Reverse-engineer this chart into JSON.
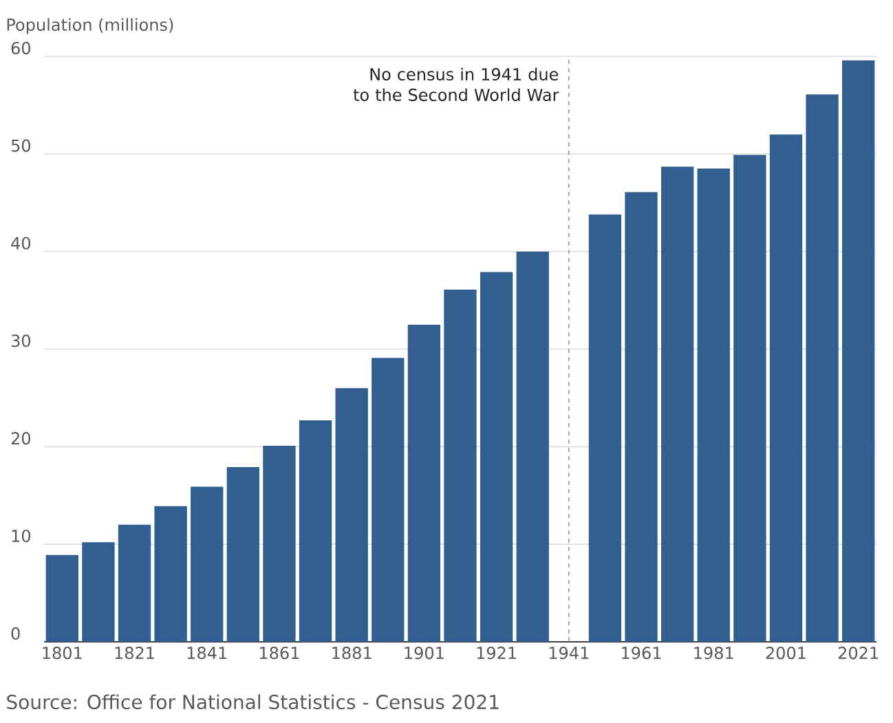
{
  "chart_data": {
    "type": "bar",
    "ylabel": "Population (millions)",
    "x": [
      1801,
      1811,
      1821,
      1831,
      1841,
      1851,
      1861,
      1871,
      1881,
      1891,
      1901,
      1911,
      1921,
      1931,
      1951,
      1961,
      1971,
      1981,
      1991,
      2001,
      2011,
      2021
    ],
    "values": [
      8.9,
      10.2,
      12.0,
      13.9,
      15.9,
      17.9,
      20.1,
      22.7,
      26.0,
      29.1,
      32.5,
      36.1,
      37.9,
      40.0,
      43.8,
      46.1,
      48.7,
      48.5,
      49.9,
      52.0,
      56.1,
      59.6
    ],
    "color": "#325f8f",
    "xlim": [
      1796,
      2026
    ],
    "ylim": [
      0,
      60
    ],
    "xticks": [
      1801,
      1821,
      1841,
      1861,
      1881,
      1901,
      1921,
      1941,
      1961,
      1981,
      2001,
      2021
    ],
    "yticks": [
      0,
      10,
      20,
      30,
      40,
      50,
      60
    ],
    "grid": "y",
    "ref_lines": [
      {
        "axis": "x",
        "value": 1941,
        "label": "No census in 1941 due to the Second World War",
        "color": "#999999",
        "line_style": "dashed"
      }
    ],
    "annotations": [
      "Source: Office for National Statistics - Census 2021"
    ]
  }
}
